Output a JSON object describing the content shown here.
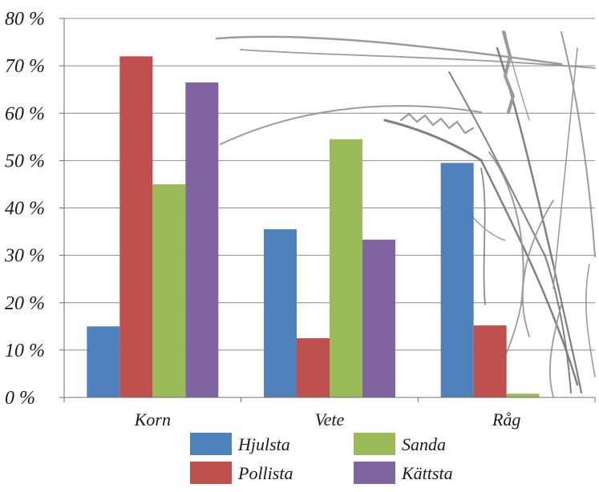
{
  "chart_data": {
    "type": "bar",
    "title": "",
    "xlabel": "",
    "ylabel": "",
    "categories": [
      "Korn",
      "Vete",
      "Råg"
    ],
    "series": [
      {
        "name": "Hjulsta",
        "color": "#4f81bd",
        "values": [
          15,
          35.5,
          49.5
        ]
      },
      {
        "name": "Pollista",
        "color": "#c0504d",
        "values": [
          72,
          12.5,
          15.2
        ]
      },
      {
        "name": "Sanda",
        "color": "#9bbb59",
        "values": [
          45,
          54.5,
          0.8
        ]
      },
      {
        "name": "Kättsta",
        "color": "#8064a2",
        "values": [
          66.5,
          33.3,
          null
        ]
      }
    ],
    "ylim": [
      0,
      80
    ],
    "yticks": [
      0,
      10,
      20,
      30,
      40,
      50,
      60,
      70,
      80
    ],
    "ytick_labels": [
      "0 %",
      "10 %",
      "20 %",
      "30 %",
      "40 %",
      "50 %",
      "60 %",
      "70 %",
      "80 %"
    ],
    "grid": true,
    "legend_position": "bottom",
    "background_decoration": "cereal-plant-sketch"
  }
}
